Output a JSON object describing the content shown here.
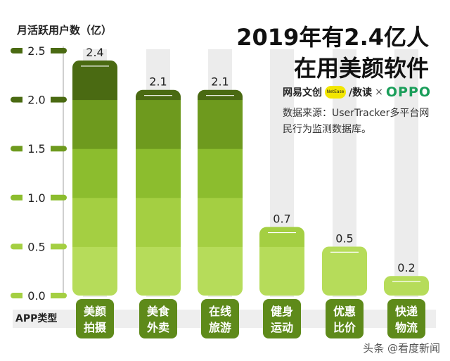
{
  "title_line1": "2019年有2.4亿人",
  "title_line2": "在用美颜软件",
  "brand": {
    "netease": "网易文创",
    "badge": "NetEase",
    "shudu": "/数读",
    "times": "×",
    "oppo": "OPPO"
  },
  "source": "数据来源：UserTracker多平台网民行为监测数据库。",
  "watermark": "头条 @看度新闻",
  "colors": {
    "dark": "#4a6a12",
    "mid": "#6e9a1e",
    "light": "#8cbd2e",
    "lighter": "#a4cf42",
    "lightest": "#b6dc5a",
    "label_bg": "#5e8a1a",
    "guide": "#ececec"
  },
  "chart_data": {
    "type": "bar",
    "ylabel": "月活跃用户数（亿）",
    "xlabel": "APP类型",
    "ylim": [
      0,
      2.5
    ],
    "yticks": [
      "0.0",
      "0.5",
      "1.0",
      "1.5",
      "2.0",
      "2.5"
    ],
    "categories": [
      {
        "line1": "美颜",
        "line2": "拍摄"
      },
      {
        "line1": "美食",
        "line2": "外卖"
      },
      {
        "line1": "在线",
        "line2": "旅游"
      },
      {
        "line1": "健身",
        "line2": "运动"
      },
      {
        "line1": "优惠",
        "line2": "比价"
      },
      {
        "line1": "快递",
        "line2": "物流"
      }
    ],
    "values": [
      2.4,
      2.1,
      2.1,
      0.7,
      0.5,
      0.2
    ],
    "value_labels": [
      "2.4",
      "2.1",
      "2.1",
      "0.7",
      "0.5",
      "0.2"
    ]
  }
}
